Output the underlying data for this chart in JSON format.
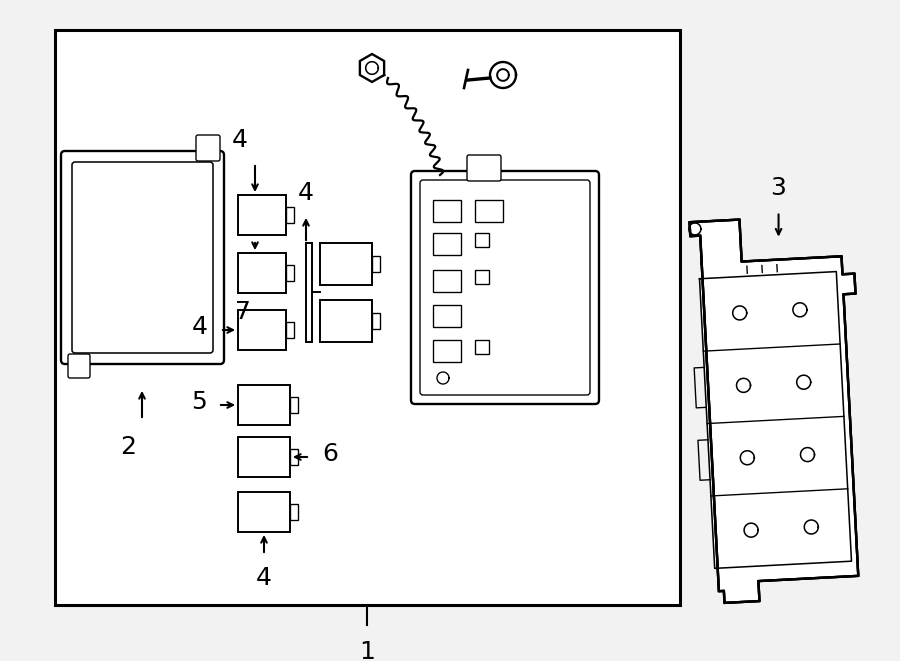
{
  "bg_color": "#f2f2f2",
  "line_color": "black",
  "label1": "1",
  "label2": "2",
  "label3": "3",
  "label4": "4",
  "label5": "5",
  "label6": "6",
  "label7": "7",
  "font_size_labels": 16,
  "border_lw": 2.2
}
